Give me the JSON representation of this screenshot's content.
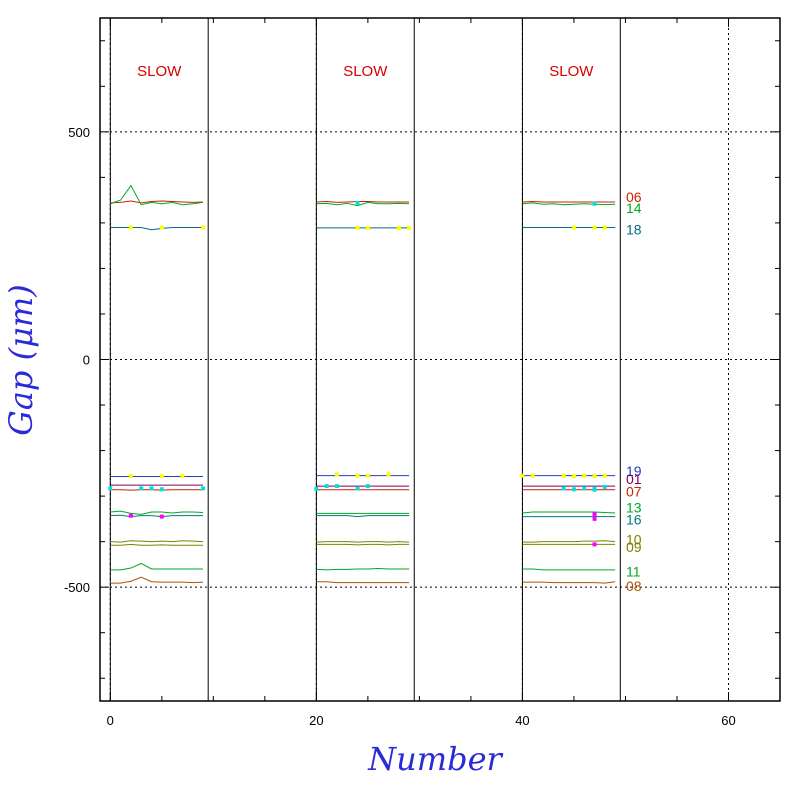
{
  "chart_data": {
    "type": "line",
    "xlabel": "Number",
    "ylabel": "Gap (μm)",
    "xlim": [
      -1,
      65
    ],
    "ylim": [
      -750,
      750
    ],
    "x_ticks": [
      0,
      20,
      40,
      60
    ],
    "y_ticks": [
      500,
      0,
      -500
    ],
    "x_tick_labels": [
      "0",
      "20",
      "40",
      "60"
    ],
    "y_tick_labels": [
      "500",
      "0",
      "-500"
    ],
    "grid": true,
    "grid_style": "dotted",
    "segments": [
      {
        "start": 0,
        "end": 9.5,
        "label": "SLOW"
      },
      {
        "start": 20,
        "end": 29.5,
        "label": "SLOW"
      },
      {
        "start": 40,
        "end": 49.5,
        "label": "SLOW"
      }
    ],
    "series": [
      {
        "name": "06",
        "color": "#cc2200",
        "label_value": 357,
        "values": [
          [
            344,
            345,
            348,
            344,
            347,
            348,
            347,
            346,
            345,
            346
          ],
          [
            346,
            347,
            345,
            346,
            347,
            347,
            346,
            346,
            346,
            346
          ],
          [
            346,
            347,
            346,
            346,
            346,
            346,
            346,
            346,
            346,
            346
          ]
        ]
      },
      {
        "name": "14",
        "color": "#00aa22",
        "label_value": 333,
        "values": [
          [
            342,
            350,
            382,
            340,
            345,
            342,
            345,
            340,
            342,
            345
          ],
          [
            342,
            343,
            340,
            343,
            338,
            345,
            342,
            342,
            343,
            342
          ],
          [
            342,
            344,
            341,
            342,
            340,
            341,
            342,
            341,
            340,
            341
          ]
        ]
      },
      {
        "name": "18",
        "color": "#006b8a",
        "label_value": 285,
        "values": [
          [
            290,
            290,
            290,
            290,
            285,
            288,
            290,
            290,
            290,
            290
          ],
          [
            289,
            289,
            289,
            289,
            289,
            289,
            289,
            289,
            289,
            289
          ],
          [
            290,
            290,
            290,
            290,
            290,
            290,
            290,
            290,
            290,
            290
          ]
        ]
      },
      {
        "name": "19",
        "color": "#1f3fbf",
        "label_value": -245,
        "values": [
          [
            -257,
            -257,
            -257,
            -257,
            -257,
            -257,
            -257,
            -257,
            -257,
            -257
          ],
          [
            -255,
            -255,
            -255,
            -255,
            -255,
            -255,
            -255,
            -255,
            -255,
            -255
          ],
          [
            -255,
            -255,
            -255,
            -255,
            -255,
            -255,
            -255,
            -255,
            -255,
            -255
          ]
        ]
      },
      {
        "name": "01",
        "color": "#800060",
        "label_value": -262,
        "values": [
          [
            -276,
            -276,
            -276,
            -276,
            -276,
            -276,
            -276,
            -276,
            -276,
            -276
          ],
          [
            -278,
            -278,
            -278,
            -278,
            -278,
            -278,
            -278,
            -278,
            -278,
            -278
          ],
          [
            -278,
            -278,
            -278,
            -278,
            -278,
            -278,
            -278,
            -278,
            -278,
            -278
          ]
        ]
      },
      {
        "name": "07",
        "color": "#cc2200",
        "label_value": -290,
        "values": [
          [
            -286,
            -286,
            -287,
            -286,
            -286,
            -287,
            -286,
            -286,
            -286,
            -286
          ],
          [
            -286,
            -286,
            -286,
            -286,
            -286,
            -286,
            -286,
            -286,
            -286,
            -286
          ],
          [
            -286,
            -286,
            -286,
            -286,
            -286,
            -286,
            -286,
            -286,
            -286,
            -286
          ]
        ]
      },
      {
        "name": "13",
        "color": "#00aa22",
        "label_value": -325,
        "values": [
          [
            -335,
            -333,
            -338,
            -340,
            -335,
            -335,
            -337,
            -335,
            -335,
            -336
          ],
          [
            -338,
            -338,
            -338,
            -338,
            -338,
            -338,
            -338,
            -338,
            -338,
            -338
          ],
          [
            -337,
            -335,
            -335,
            -335,
            -335,
            -335,
            -335,
            -335,
            -336,
            -337
          ]
        ]
      },
      {
        "name": "16",
        "color": "#007a7a",
        "label_value": -351,
        "values": [
          [
            -343,
            -342,
            -345,
            -343,
            -343,
            -345,
            -343,
            -343,
            -343,
            -343
          ],
          [
            -343,
            -343,
            -343,
            -343,
            -345,
            -343,
            -343,
            -343,
            -343,
            -343
          ],
          [
            -345,
            -345,
            -345,
            -345,
            -345,
            -345,
            -345,
            -345,
            -345,
            -345
          ]
        ]
      },
      {
        "name": "10",
        "color": "#808000",
        "label_value": -395,
        "values": [
          [
            -400,
            -401,
            -398,
            -399,
            -400,
            -399,
            -400,
            -398,
            -399,
            -400
          ],
          [
            -401,
            -400,
            -400,
            -400,
            -401,
            -400,
            -400,
            -401,
            -400,
            -401
          ],
          [
            -401,
            -401,
            -400,
            -400,
            -400,
            -400,
            -399,
            -399,
            -398,
            -400
          ]
        ]
      },
      {
        "name": "09",
        "color": "#808000",
        "label_value": -412,
        "values": [
          [
            -408,
            -408,
            -406,
            -408,
            -408,
            -407,
            -408,
            -408,
            -408,
            -408
          ],
          [
            -406,
            -406,
            -406,
            -406,
            -407,
            -406,
            -406,
            -407,
            -406,
            -406
          ],
          [
            -406,
            -406,
            -406,
            -406,
            -406,
            -406,
            -406,
            -406,
            -406,
            -406
          ]
        ]
      },
      {
        "name": "11",
        "color": "#00aa22",
        "label_value": -466,
        "values": [
          [
            -462,
            -462,
            -458,
            -448,
            -460,
            -460,
            -460,
            -460,
            -460,
            -460
          ],
          [
            -461,
            -462,
            -461,
            -461,
            -460,
            -460,
            -459,
            -460,
            -460,
            -460
          ],
          [
            -460,
            -460,
            -462,
            -462,
            -462,
            -462,
            -462,
            -462,
            -462,
            -462
          ]
        ]
      },
      {
        "name": "08",
        "color": "#aa5500",
        "label_value": -497,
        "values": [
          [
            -491,
            -491,
            -487,
            -478,
            -488,
            -489,
            -489,
            -489,
            -490,
            -489
          ],
          [
            -488,
            -488,
            -490,
            -490,
            -490,
            -490,
            -490,
            -490,
            -490,
            -490
          ],
          [
            -489,
            -489,
            -489,
            -490,
            -490,
            -490,
            -490,
            -490,
            -491,
            -488
          ]
        ]
      }
    ],
    "markers": [
      {
        "color": "#ffff00",
        "points": [
          [
            2,
            290
          ],
          [
            5,
            290
          ],
          [
            9,
            290
          ],
          [
            24,
            289
          ],
          [
            25,
            289
          ],
          [
            28,
            289
          ],
          [
            29,
            289
          ],
          [
            45,
            290
          ],
          [
            47,
            290
          ],
          [
            48,
            290
          ],
          [
            22,
            -252
          ],
          [
            24,
            -255
          ],
          [
            25,
            -255
          ],
          [
            27,
            -252
          ],
          [
            2,
            -256
          ],
          [
            5,
            -256
          ],
          [
            7,
            -256
          ],
          [
            40,
            -255
          ],
          [
            41,
            -255
          ],
          [
            44,
            -255
          ],
          [
            46,
            -255
          ],
          [
            47,
            -256
          ],
          [
            48,
            -255
          ],
          [
            45,
            -256
          ]
        ]
      },
      {
        "color": "#00e0e0",
        "points": [
          [
            24,
            344
          ],
          [
            47,
            342
          ],
          [
            0,
            -283
          ],
          [
            3,
            -283
          ],
          [
            4,
            -283
          ],
          [
            5,
            -285
          ],
          [
            9,
            -283
          ],
          [
            20,
            -284
          ],
          [
            21,
            -278
          ],
          [
            22,
            -278
          ],
          [
            24,
            -283
          ],
          [
            25,
            -278
          ],
          [
            44,
            -283
          ],
          [
            45,
            -285
          ],
          [
            46,
            -283
          ],
          [
            47,
            -283
          ],
          [
            48,
            -280
          ],
          [
            47,
            -286
          ]
        ]
      },
      {
        "color": "#ff00ff",
        "points": [
          [
            2,
            -343
          ],
          [
            5,
            -345
          ],
          [
            47,
            -340
          ],
          [
            47,
            -350
          ],
          [
            47,
            -406
          ]
        ]
      }
    ]
  }
}
